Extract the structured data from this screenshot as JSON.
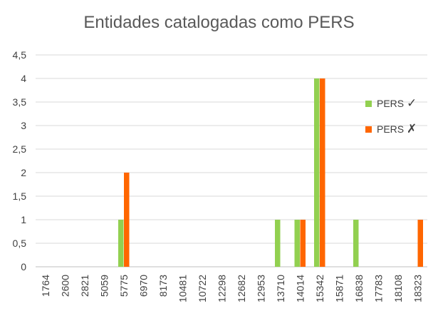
{
  "chart_data": {
    "type": "bar",
    "title": "Entidades catalogadas como PERS",
    "xlabel": "",
    "ylabel": "",
    "categories": [
      "1764",
      "2600",
      "2821",
      "5059",
      "5775",
      "6970",
      "8173",
      "10481",
      "10722",
      "12298",
      "12682",
      "12953",
      "13710",
      "14014",
      "15342",
      "15871",
      "16838",
      "17783",
      "18108",
      "18323"
    ],
    "series": [
      {
        "name": "PERS",
        "mark": "✓",
        "color": "#92D050",
        "values": [
          0,
          0,
          0,
          0,
          1,
          0,
          0,
          0,
          0,
          0,
          0,
          0,
          1,
          1,
          4,
          0,
          1,
          0,
          0,
          0
        ]
      },
      {
        "name": "PERS",
        "mark": "✗",
        "color": "#FF6600",
        "values": [
          0,
          0,
          0,
          0,
          2,
          0,
          0,
          0,
          0,
          0,
          0,
          0,
          0,
          1,
          4,
          0,
          0,
          0,
          0,
          1
        ]
      }
    ],
    "ylim": [
      0,
      4.5
    ],
    "yticks": [
      "0",
      "0,5",
      "1",
      "1,5",
      "2",
      "2,5",
      "3",
      "3,5",
      "4",
      "4,5"
    ],
    "grid": true,
    "legend": "right"
  }
}
